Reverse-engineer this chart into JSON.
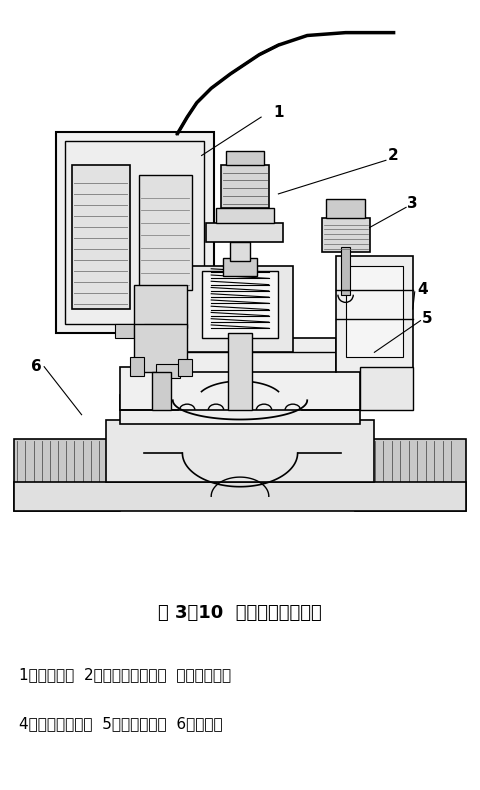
{
  "title": "图 3－10  电磁阀结构示意图",
  "caption_line1": "1－电磁头；  2－流量调节手柄；  外排气螺丝；",
  "caption_line2": "4－电磁阀上腔；  5－橡皮隔膜；  6－导流孔",
  "bg_color": "#ffffff",
  "title_fontsize": 13,
  "caption_fontsize": 11,
  "fig_width": 4.8,
  "fig_height": 7.9,
  "dpi": 100
}
